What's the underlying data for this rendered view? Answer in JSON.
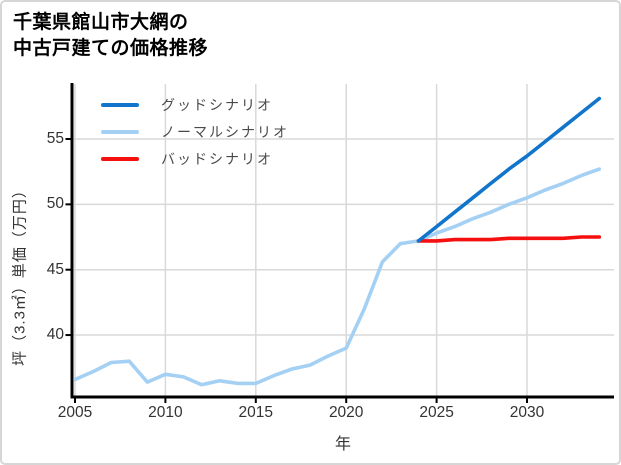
{
  "title": {
    "line1": "千葉県館山市大網の",
    "line2": "中古戸建ての価格推移"
  },
  "legend": {
    "items": [
      {
        "label": "グッドシナリオ",
        "color": "#1175cb"
      },
      {
        "label": "ノーマルシナリオ",
        "color": "#a4d0f4"
      },
      {
        "label": "バッドシナリオ",
        "color": "#f50f0f"
      }
    ]
  },
  "axes": {
    "x_label": "年",
    "y_label": "坪（3.3㎡）単価（万円）"
  },
  "colors": {
    "grid": "#d9d9d9",
    "axis": "#000000",
    "tick_text": "#333333",
    "legend_text": "#4a4a4a",
    "background": "#ffffff",
    "border": "#d6d6d6"
  },
  "chart_data": {
    "type": "line",
    "title": "千葉県館山市大網の中古戸建ての価格推移",
    "xlabel": "年",
    "ylabel": "坪（3.3㎡）単価（万円）",
    "x_ticks": [
      2005,
      2010,
      2015,
      2020,
      2025,
      2030
    ],
    "y_ticks": [
      40,
      45,
      50,
      55
    ],
    "xlim": [
      2005,
      2034.5
    ],
    "ylim": [
      35.3,
      58.8
    ],
    "grid": true,
    "legend_position": "upper-left",
    "series": [
      {
        "name": "ノーマルシナリオ",
        "color": "#a4d0f4",
        "x": [
          2005,
          2006,
          2007,
          2008,
          2009,
          2010,
          2011,
          2012,
          2013,
          2014,
          2015,
          2016,
          2017,
          2018,
          2019,
          2020,
          2021,
          2022,
          2023,
          2024,
          2025,
          2026,
          2027,
          2028,
          2029,
          2030,
          2031,
          2032,
          2033,
          2034
        ],
        "values": [
          36.6,
          37.2,
          37.9,
          38.0,
          36.4,
          37.0,
          36.8,
          36.2,
          36.5,
          36.3,
          36.3,
          36.9,
          37.4,
          37.7,
          38.4,
          39.0,
          42.0,
          45.6,
          47.0,
          47.2,
          47.8,
          48.3,
          48.9,
          49.4,
          50.0,
          50.5,
          51.1,
          51.6,
          52.2,
          52.7
        ]
      },
      {
        "name": "バッドシナリオ",
        "color": "#f50f0f",
        "x": [
          2024,
          2025,
          2026,
          2027,
          2028,
          2029,
          2030,
          2031,
          2032,
          2033,
          2034
        ],
        "values": [
          47.2,
          47.2,
          47.3,
          47.3,
          47.3,
          47.4,
          47.4,
          47.4,
          47.4,
          47.5,
          47.5
        ]
      },
      {
        "name": "グッドシナリオ",
        "color": "#1175cb",
        "x": [
          2024,
          2025,
          2026,
          2027,
          2028,
          2029,
          2030,
          2031,
          2032,
          2033,
          2034
        ],
        "values": [
          47.2,
          48.3,
          49.4,
          50.5,
          51.6,
          52.7,
          53.7,
          54.8,
          55.9,
          57.0,
          58.1
        ]
      }
    ]
  }
}
